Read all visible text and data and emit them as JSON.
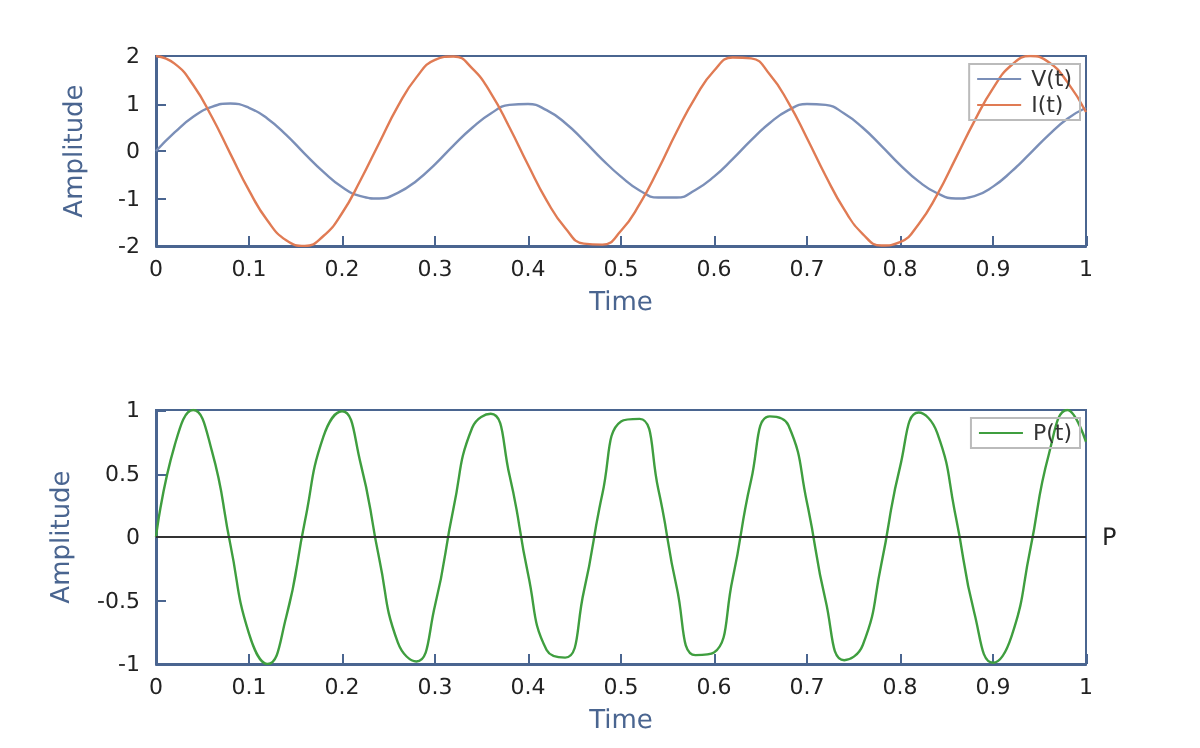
{
  "chart_data": [
    {
      "type": "line",
      "xlabel": "Time",
      "ylabel": "Amplitude",
      "x": [
        0,
        0.02,
        0.04,
        0.06,
        0.08,
        0.1,
        0.12,
        0.14,
        0.16,
        0.18,
        0.2,
        0.22,
        0.24,
        0.26,
        0.28,
        0.3,
        0.32,
        0.34,
        0.36,
        0.38,
        0.4,
        0.42,
        0.44,
        0.46,
        0.48,
        0.5,
        0.52,
        0.54,
        0.56,
        0.58,
        0.6,
        0.62,
        0.64,
        0.66,
        0.68,
        0.7,
        0.72,
        0.74,
        0.76,
        0.78,
        0.8,
        0.82,
        0.84,
        0.86,
        0.88,
        0.9,
        0.92,
        0.94,
        0.96,
        0.98,
        1
      ],
      "series": [
        {
          "name": "V(t)",
          "color": "#7b8fb8",
          "values": [
            0,
            0.39,
            0.72,
            0.93,
            1,
            0.91,
            0.68,
            0.34,
            -0.06,
            -0.44,
            -0.76,
            -0.95,
            -1,
            -0.88,
            -0.63,
            -0.28,
            0.12,
            0.49,
            0.79,
            0.97,
            0.99,
            0.86,
            0.59,
            0.22,
            -0.18,
            -0.54,
            -0.83,
            -0.98,
            -0.98,
            -0.82,
            -0.54,
            -0.17,
            0.23,
            0.59,
            0.86,
            0.99,
            0.97,
            0.79,
            0.49,
            0.11,
            -0.29,
            -0.64,
            -0.89,
            -1,
            -0.95,
            -0.75,
            -0.43,
            -0.05,
            0.34,
            0.68,
            0.91
          ]
        },
        {
          "name": "I(t)",
          "color": "#e07b54",
          "values": [
            2,
            1.84,
            1.39,
            0.72,
            -0.06,
            -0.83,
            -1.47,
            -1.88,
            -2,
            -1.79,
            -1.31,
            -0.61,
            0.17,
            0.94,
            1.55,
            1.92,
            1.99,
            1.74,
            1.22,
            0.5,
            -0.29,
            -1.04,
            -1.62,
            -1.95,
            -1.97,
            -1.68,
            -1.12,
            -0.39,
            0.41,
            1.13,
            1.69,
            1.97,
            1.95,
            1.61,
            1.02,
            0.27,
            -0.52,
            -1.23,
            -1.75,
            -1.99,
            -1.92,
            -1.54,
            -0.92,
            -0.15,
            0.63,
            1.32,
            1.81,
            2,
            1.87,
            1.45,
            0.82
          ]
        }
      ],
      "xlim": [
        0,
        1
      ],
      "xticks": [
        0,
        0.1,
        0.2,
        0.3,
        0.4,
        0.5,
        0.6,
        0.7,
        0.8,
        0.9,
        1
      ],
      "ylim": [
        -2,
        2
      ],
      "yticks": [
        -2,
        -1,
        0,
        1,
        2
      ],
      "legend": "top right",
      "marker": "none",
      "line_style": "solid"
    },
    {
      "type": "line",
      "xlabel": "Time",
      "ylabel": "Amplitude",
      "x": [
        0,
        0.02,
        0.04,
        0.06,
        0.08,
        0.1,
        0.12,
        0.14,
        0.16,
        0.18,
        0.2,
        0.22,
        0.24,
        0.26,
        0.28,
        0.3,
        0.32,
        0.34,
        0.36,
        0.38,
        0.4,
        0.42,
        0.44,
        0.46,
        0.48,
        0.5,
        0.52,
        0.54,
        0.56,
        0.58,
        0.6,
        0.62,
        0.64,
        0.66,
        0.68,
        0.7,
        0.72,
        0.74,
        0.76,
        0.78,
        0.8,
        0.82,
        0.84,
        0.86,
        0.88,
        0.9,
        0.92,
        0.94,
        0.96,
        0.98,
        1
      ],
      "series": [
        {
          "name": "P(t)",
          "color": "#3f9e3f",
          "values": [
            0,
            0.72,
            1,
            0.68,
            -0.06,
            -0.76,
            -1,
            -0.63,
            0.12,
            0.79,
            0.99,
            0.58,
            -0.17,
            -0.83,
            -0.98,
            -0.54,
            0.23,
            0.86,
            0.97,
            0.49,
            -0.29,
            -0.89,
            -0.95,
            -0.43,
            0.34,
            0.91,
            0.93,
            0.38,
            -0.4,
            -0.93,
            -0.91,
            -0.33,
            0.45,
            0.95,
            0.88,
            0.27,
            -0.5,
            -0.97,
            -0.85,
            -0.21,
            0.55,
            0.98,
            0.82,
            0.16,
            -0.6,
            -0.99,
            -0.78,
            -0.1,
            0.65,
            1,
            0.75
          ]
        }
      ],
      "ref_lines": [
        {
          "axis": "y",
          "value": 0,
          "label": "P",
          "color": "#333333"
        }
      ],
      "xlim": [
        0,
        1
      ],
      "xticks": [
        0,
        0.1,
        0.2,
        0.3,
        0.4,
        0.5,
        0.6,
        0.7,
        0.8,
        0.9,
        1
      ],
      "ylim": [
        -1,
        1
      ],
      "yticks": [
        -1,
        -0.5,
        0,
        0.5,
        1
      ],
      "legend": "top right",
      "marker": "none",
      "line_style": "solid"
    }
  ]
}
